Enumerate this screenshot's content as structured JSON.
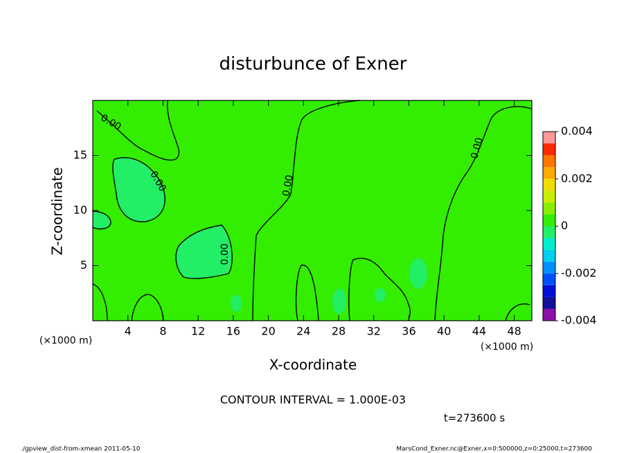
{
  "chart_data": {
    "type": "contour",
    "title": "disturbunce of Exner",
    "x_label": "X-coordinate",
    "y_label": "Z-coordinate",
    "x_unit": "(×1000 m)",
    "y_unit": "(×1000 m)",
    "xlim": [
      0,
      50
    ],
    "xticks": [
      4,
      8,
      12,
      16,
      20,
      24,
      28,
      32,
      36,
      40,
      44,
      48
    ],
    "ylim": [
      0,
      20
    ],
    "yticks": [
      5,
      10,
      15
    ],
    "contour_labels": [
      "0.00",
      "0.00",
      "0.00",
      "0.00",
      "0.00"
    ],
    "colorbar": {
      "levels": [
        -0.004,
        -0.0035,
        -0.003,
        -0.0025,
        -0.002,
        -0.0015,
        -0.001,
        -0.0005,
        0,
        0.0005,
        0.001,
        0.0015,
        0.002,
        0.0025,
        0.003,
        0.0035,
        0.004
      ],
      "colors": [
        "#8a10a8",
        "#10109a",
        "#0010d8",
        "#0050ff",
        "#0090ff",
        "#00d0f0",
        "#00eecc",
        "#22ee66",
        "#33ee00",
        "#88ee00",
        "#c8ee00",
        "#eedd00",
        "#ffaa00",
        "#ff7700",
        "#ff2a00",
        "#ff9999"
      ],
      "ticks": [
        0.004,
        0.002,
        0,
        -0.002,
        -0.004
      ]
    },
    "contour_interval": "CONTOUR INTERVAL = 1.000E-03",
    "time": "t=273600 s",
    "footer_left": "./gpview_dist-from-xmean  2011-05-10",
    "footer_right": "MarsCond_Exner.nc@Exner,x=0:500000,z=0:25000,t=273600"
  }
}
